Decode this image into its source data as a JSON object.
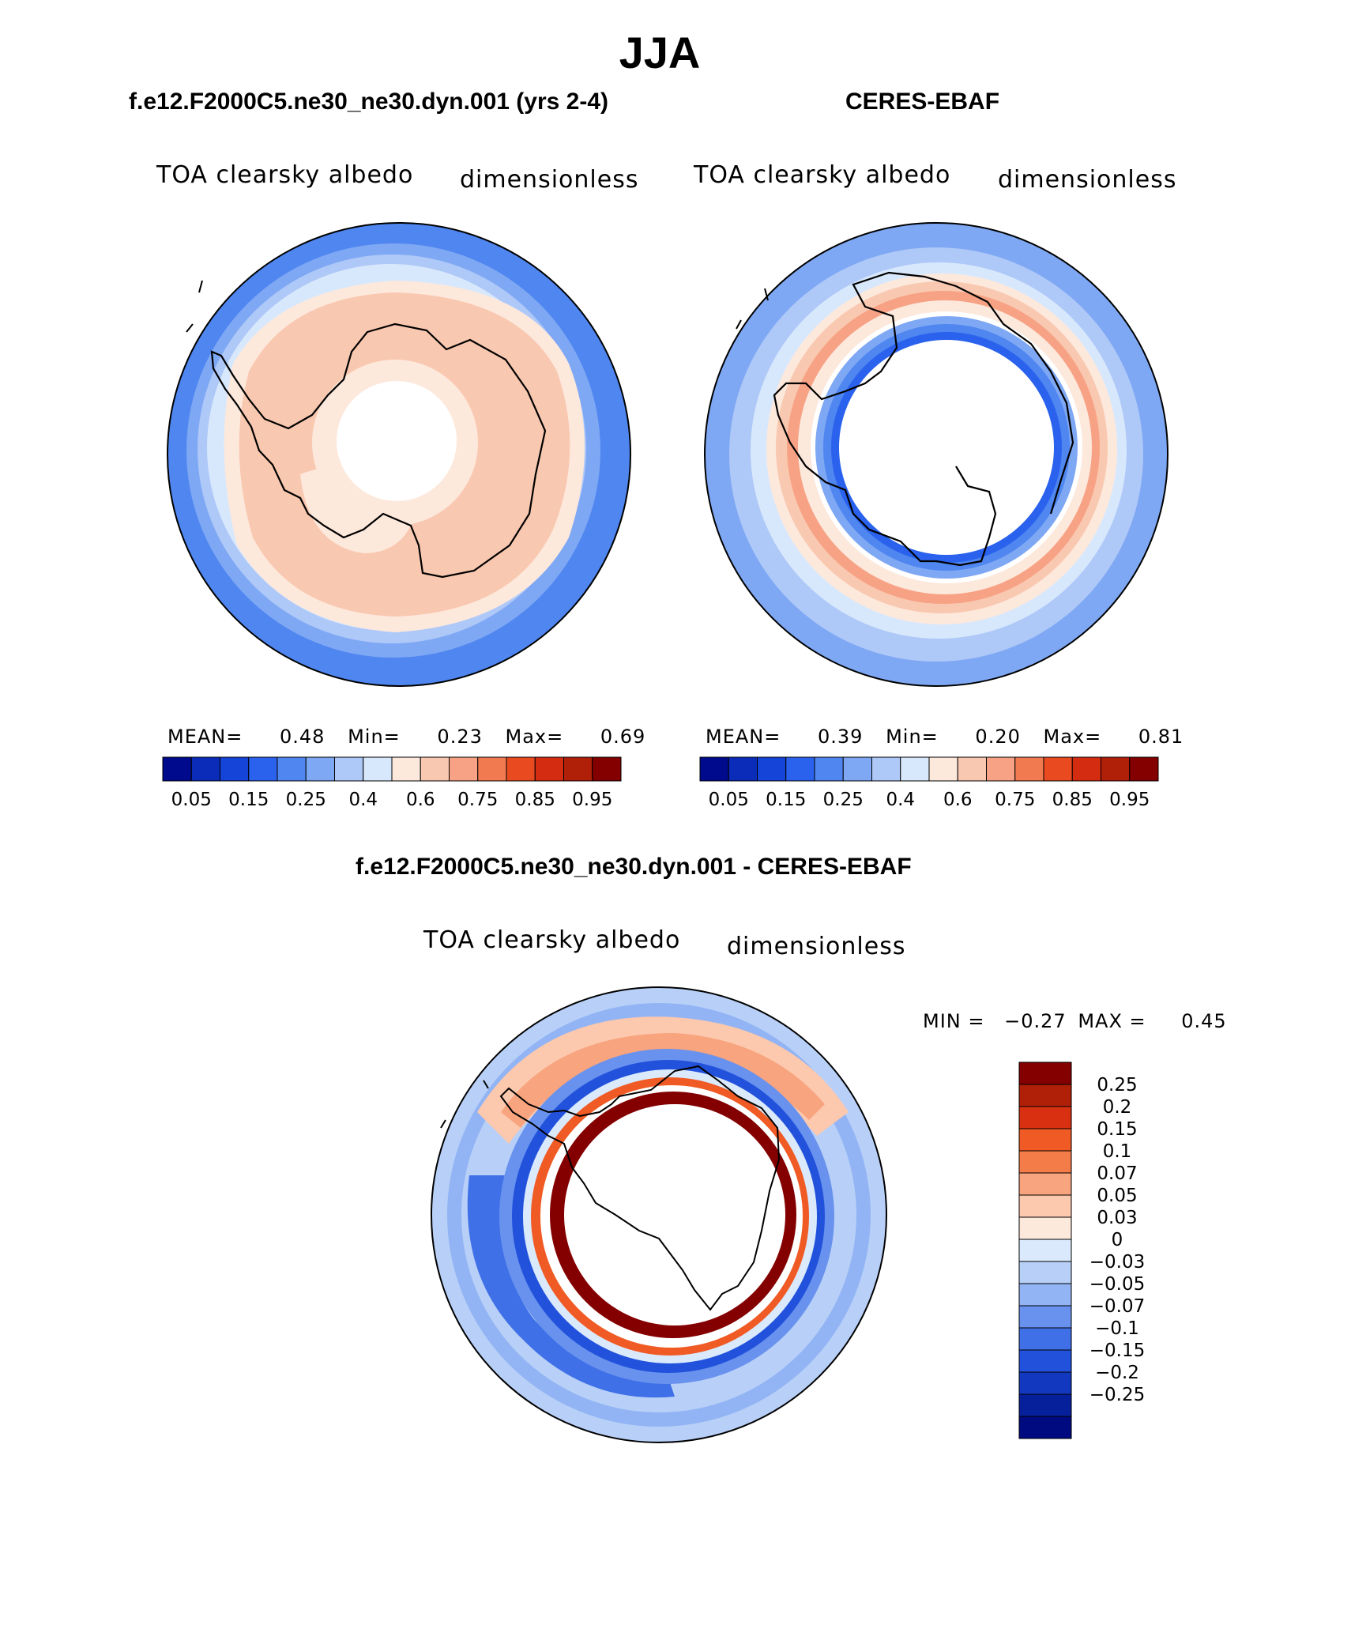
{
  "title": "JJA",
  "panels": [
    {
      "name": "model",
      "case": "f.e12.F2000C5.ne30_ne30.dyn.001 (yrs 2-4)",
      "variable": "TOA clearsky albedo",
      "units": "dimensionless",
      "stats": {
        "mean_label": "MEAN=",
        "mean": "0.48",
        "min_label": "Min=",
        "min": "0.23",
        "max_label": "Max=",
        "max": "0.69"
      }
    },
    {
      "name": "obs",
      "case": "CERES-EBAF",
      "variable": "TOA clearsky albedo",
      "units": "dimensionless",
      "stats": {
        "mean_label": "MEAN=",
        "mean": "0.39",
        "min_label": "Min=",
        "min": "0.20",
        "max_label": "Max=",
        "max": "0.81"
      }
    }
  ],
  "difference": {
    "case": "f.e12.F2000C5.ne30_ne30.dyn.001 - CERES-EBAF",
    "variable": "TOA clearsky albedo",
    "units": "dimensionless",
    "minmax": {
      "min_label": "MIN =",
      "min": "−0.27",
      "max_label": "MAX =",
      "max": "0.45"
    }
  },
  "colorbar_top": {
    "colors": [
      "#000a8c",
      "#0a2cb8",
      "#1444d8",
      "#2a62ee",
      "#4f86f0",
      "#7fa8f4",
      "#aec8f8",
      "#d8e8fc",
      "#fde8dc",
      "#f9c8b0",
      "#f7a284",
      "#f27a50",
      "#ea4a20",
      "#d42c10",
      "#b02008",
      "#840000"
    ],
    "labels": [
      "0.05",
      "0.15",
      "0.25",
      "0.4",
      "0.6",
      "0.75",
      "0.85",
      "0.95"
    ]
  },
  "colorbar_diff": {
    "colors": [
      "#840000",
      "#b02008",
      "#d83010",
      "#f05a24",
      "#f47c48",
      "#f8a47e",
      "#fcc8ae",
      "#fde8dc",
      "#daeafc",
      "#b8d0f8",
      "#92b4f4",
      "#6892ee",
      "#4070e8",
      "#2252dc",
      "#1238c0",
      "#06209c",
      "#000a80"
    ],
    "labels": [
      "0.25",
      "0.2",
      "0.15",
      "0.1",
      "0.07",
      "0.05",
      "0.03",
      "0",
      "−0.03",
      "−0.05",
      "−0.07",
      "−0.1",
      "−0.15",
      "−0.2",
      "−0.25"
    ]
  }
}
